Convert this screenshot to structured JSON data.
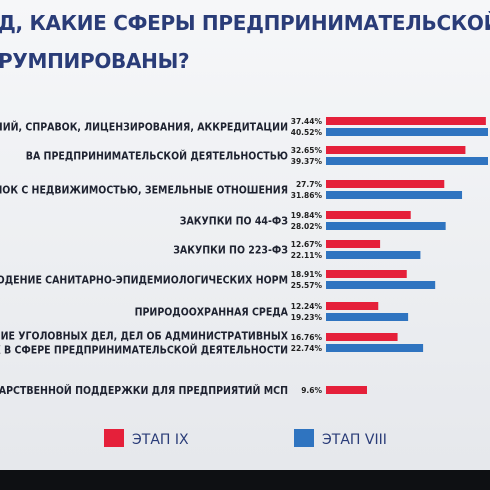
{
  "title": {
    "line1": "Д, КАКИЕ СФЕРЫ ПРЕДПРИНИМАТЕЛЬСКОЙ ДЕЯТЕЛ",
    "line2": "РУМПИРОВАНЫ?"
  },
  "chart_data": {
    "type": "bar",
    "orientation": "horizontal",
    "categories": [
      [
        "РЕШЕНИЙ, СПРАВОК, ЛИЦЕНЗИРОВАНИЯ, АККРЕДИТАЦИИ"
      ],
      [
        "ВА ПРЕДПРИНИМАТЕЛЬСКОЙ ДЕЯТЕЛЬНОСТЬЮ"
      ],
      [
        "ЯЯ СДЕЛОК С НЕДВИЖИМОСТЬЮ, ЗЕМЕЛЬНЫЕ ОТНОШЕНИЯ"
      ],
      [
        "ЗАКУПКИ ПО 44-ФЗ"
      ],
      [
        "ЗАКУПКИ ПО 223-ФЗ"
      ],
      [
        "СОБЛЮДЕНИЕ САНИТАРНО-ЭПИДЕМИОЛОГИЧЕСКИХ НОРМ"
      ],
      [
        "ПРИРОДООХРАННАЯ СРЕДА"
      ],
      [
        "ОВАНИЕ УГОЛОВНЫХ ДЕЛ, ДЕЛ ОБ  АДМИНИСТРАТИВНЫХ",
        "ЕНИЯХ В СФЕРЕ ПРЕДПРИНИМАТЕЛЬСКОЙ ДЕЯТЕЛЬНОСТИ"
      ],
      [
        "ГОСУДАРСТВЕННОЙ ПОДДЕРЖКИ ДЛЯ ПРЕДПРИЯТИЙ МСП"
      ]
    ],
    "series": [
      {
        "name": "ЭТАП IX",
        "color": "#e5203a",
        "values": [
          37.44,
          32.65,
          27.7,
          19.84,
          12.67,
          18.91,
          12.24,
          16.76,
          9.6
        ],
        "labels": [
          "37.44%",
          "32.65%",
          "27.7%",
          "19.84%",
          "12.67%",
          "18.91%",
          "12.24%",
          "16.76%",
          "9.6%"
        ]
      },
      {
        "name": "ЭТАП VIII",
        "color": "#2f74c0",
        "values": [
          40.52,
          39.37,
          31.86,
          28.02,
          22.11,
          25.57,
          19.23,
          22.74,
          null
        ],
        "labels": [
          "40.52%",
          "39.37%",
          "31.86%",
          "28.02%",
          "22.11%",
          "25.57%",
          "19.23%",
          "22.74%",
          ""
        ]
      }
    ]
  }
}
